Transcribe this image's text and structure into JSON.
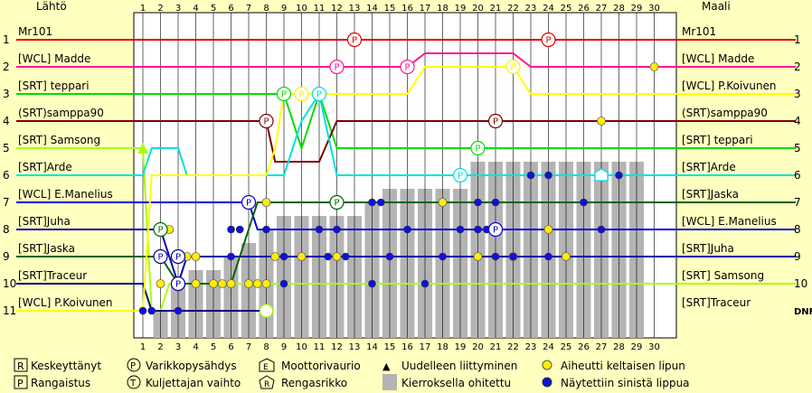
{
  "header": {
    "start_title": "Lähtö",
    "finish_title": "Maali"
  },
  "chart_data": {
    "type": "line",
    "laps": [
      1,
      2,
      3,
      4,
      5,
      6,
      7,
      8,
      9,
      10,
      11,
      12,
      13,
      14,
      15,
      16,
      17,
      18,
      19,
      20,
      21,
      22,
      23,
      24,
      25,
      26,
      27,
      28,
      29,
      30
    ],
    "positions": [
      1,
      2,
      3,
      4,
      5,
      6,
      7,
      8,
      9,
      10,
      11
    ],
    "start_labels": [
      "Mr101",
      "[WCL] Madde",
      "[SRT] teppari",
      "(SRT)samppa90",
      "[SRT] Samsong",
      "[SRT]Arde",
      "[WCL] E.Manelius",
      "[SRT]Juha",
      "[SRT]Jaska",
      "[SRT]Traceur",
      "[WCL] P.Koivunen"
    ],
    "finish_labels": [
      "Mr101",
      "[WCL] Madde",
      "[WCL] P.Koivunen",
      "(SRT)samppa90",
      "[SRT] teppari",
      "[SRT]Arde",
      "[SRT]Jaska",
      "[WCL] E.Manelius",
      "[SRT]Juha",
      "[SRT] Samsong",
      "[SRT]Traceur"
    ],
    "finish_positions": [
      "1",
      "2",
      "3",
      "4",
      "5",
      "6",
      "7",
      "8",
      "9",
      "10",
      "DNF"
    ],
    "lapped_bands": [
      {
        "lap": 2,
        "top": 11
      },
      {
        "lap": 3,
        "top": 10
      },
      {
        "lap": 4,
        "top": 9.5
      },
      {
        "lap": 5,
        "top": 9.5
      },
      {
        "lap": 6,
        "top": 9
      },
      {
        "lap": 7,
        "top": 8.5
      },
      {
        "lap": 8,
        "top": 8
      },
      {
        "lap": 9,
        "top": 7.5
      },
      {
        "lap": 10,
        "top": 7.5
      },
      {
        "lap": 11,
        "top": 7.5
      },
      {
        "lap": 12,
        "top": 7.5
      },
      {
        "lap": 13,
        "top": 7.5
      },
      {
        "lap": 14,
        "top": 7
      },
      {
        "lap": 15,
        "top": 6.5
      },
      {
        "lap": 16,
        "top": 6.5
      },
      {
        "lap": 17,
        "top": 6.5
      },
      {
        "lap": 18,
        "top": 6.5
      },
      {
        "lap": 19,
        "top": 6.5
      },
      {
        "lap": 20,
        "top": 5.5
      },
      {
        "lap": 21,
        "top": 5.5
      },
      {
        "lap": 22,
        "top": 5.5
      },
      {
        "lap": 23,
        "top": 5.5
      },
      {
        "lap": 24,
        "top": 5.5
      },
      {
        "lap": 25,
        "top": 5.5
      },
      {
        "lap": 26,
        "top": 5.5
      },
      {
        "lap": 27,
        "top": 5.5
      },
      {
        "lap": 28,
        "top": 5.5
      },
      {
        "lap": 29,
        "top": 5.5
      }
    ],
    "series": [
      {
        "name": "Mr101",
        "color": "#e00000",
        "points": [
          [
            0,
            1
          ],
          [
            1,
            1
          ],
          [
            30,
            1
          ]
        ]
      },
      {
        "name": "[WCL] Madde",
        "color": "#ff1493",
        "points": [
          [
            0,
            2
          ],
          [
            1,
            2
          ],
          [
            16,
            2
          ],
          [
            17,
            1.5
          ],
          [
            22,
            1.5
          ],
          [
            23,
            2
          ],
          [
            30,
            2
          ]
        ]
      },
      {
        "name": "[SRT] teppari",
        "color": "#00dd00",
        "points": [
          [
            0,
            3
          ],
          [
            1,
            3
          ],
          [
            8,
            3
          ],
          [
            9,
            3
          ],
          [
            10,
            5
          ],
          [
            11,
            3
          ],
          [
            11.5,
            4
          ],
          [
            12,
            5
          ],
          [
            30,
            5
          ]
        ]
      },
      {
        "name": "(SRT)samppa90",
        "color": "#800000",
        "points": [
          [
            0,
            4
          ],
          [
            1,
            4
          ],
          [
            8,
            4
          ],
          [
            8.5,
            5.5
          ],
          [
            11,
            5.5
          ],
          [
            12,
            4
          ],
          [
            30,
            4
          ]
        ]
      },
      {
        "name": "[SRT] Samsong",
        "color": "#aaff00",
        "points": [
          [
            0,
            5
          ],
          [
            1,
            5
          ],
          [
            1.5,
            11
          ],
          [
            2,
            11
          ],
          [
            2.5,
            10
          ],
          [
            8,
            10
          ],
          [
            9,
            10
          ],
          [
            30,
            10
          ]
        ]
      },
      {
        "name": "[SRT]Arde",
        "color": "#00e0e0",
        "points": [
          [
            0,
            6
          ],
          [
            1,
            6
          ],
          [
            1.5,
            5
          ],
          [
            3,
            5
          ],
          [
            3.5,
            6
          ],
          [
            8,
            6
          ],
          [
            9,
            6
          ],
          [
            10,
            4
          ],
          [
            11,
            3
          ],
          [
            12,
            6
          ],
          [
            30,
            6
          ]
        ]
      },
      {
        "name": "[WCL] E.Manelius",
        "color": "#0000dd",
        "points": [
          [
            0,
            7
          ],
          [
            1,
            7
          ],
          [
            7,
            7
          ],
          [
            7.5,
            8
          ],
          [
            30,
            8
          ]
        ]
      },
      {
        "name": "[SRT]Juha",
        "color": "#0000aa",
        "points": [
          [
            0,
            8
          ],
          [
            1,
            8
          ],
          [
            2,
            8
          ],
          [
            3,
            10
          ],
          [
            3.5,
            9
          ],
          [
            30,
            9
          ]
        ]
      },
      {
        "name": "[SRT]Jaska",
        "color": "#006400",
        "points": [
          [
            0,
            9
          ],
          [
            1,
            9
          ],
          [
            2,
            9
          ],
          [
            3,
            10
          ],
          [
            6,
            10
          ],
          [
            7,
            8
          ],
          [
            7.5,
            7
          ],
          [
            30,
            7
          ]
        ]
      },
      {
        "name": "[SRT]Traceur",
        "color": "#00007a",
        "points": [
          [
            0,
            10
          ],
          [
            1,
            10
          ],
          [
            1.5,
            11
          ],
          [
            8,
            11
          ],
          [
            30,
            11
          ]
        ],
        "dotted_from": 9
      },
      {
        "name": "[WCL] P.Koivunen",
        "color": "#ffff00",
        "points": [
          [
            0,
            11
          ],
          [
            1,
            11
          ],
          [
            1.5,
            6
          ],
          [
            8,
            6
          ],
          [
            8.5,
            5
          ],
          [
            9,
            3
          ],
          [
            12,
            3
          ],
          [
            16,
            3
          ],
          [
            17,
            2
          ],
          [
            22,
            2
          ],
          [
            23,
            3
          ],
          [
            30,
            3
          ]
        ]
      }
    ],
    "pit_stops": [
      [
        13,
        1,
        "#e00000"
      ],
      [
        24,
        1,
        "#e00000"
      ],
      [
        12,
        2,
        "#ff1493"
      ],
      [
        16,
        2,
        "#ff1493"
      ],
      [
        22,
        2,
        "#ffee00"
      ],
      [
        9,
        3,
        "#00dd00"
      ],
      [
        10,
        3,
        "#ffee00"
      ],
      [
        11,
        3,
        "#00e0e0"
      ],
      [
        8,
        4,
        "#800000"
      ],
      [
        21,
        4,
        "#800000"
      ],
      [
        20,
        5,
        "#00dd00"
      ],
      [
        19,
        6,
        "#00e0e0"
      ],
      [
        7,
        7,
        "#0000dd"
      ],
      [
        12,
        7,
        "#006400"
      ],
      [
        21,
        8,
        "#0000dd"
      ],
      [
        2,
        8,
        "#006400"
      ],
      [
        2,
        9,
        "#0000aa"
      ],
      [
        3,
        9,
        "#0000aa"
      ],
      [
        3,
        10,
        "#0000aa"
      ]
    ],
    "yellow_flags": [
      [
        30,
        2
      ],
      [
        27,
        4
      ],
      [
        8,
        7
      ],
      [
        18,
        7
      ],
      [
        2.5,
        8
      ],
      [
        24,
        8
      ],
      [
        3.5,
        9
      ],
      [
        4,
        9
      ],
      [
        8.5,
        9
      ],
      [
        10,
        9
      ],
      [
        12,
        9
      ],
      [
        20,
        9
      ],
      [
        22,
        9
      ],
      [
        25,
        9
      ],
      [
        2,
        10
      ],
      [
        3,
        10
      ],
      [
        4,
        10
      ],
      [
        5,
        10
      ],
      [
        5.5,
        10
      ],
      [
        6,
        10
      ],
      [
        7,
        10
      ],
      [
        7.5,
        10
      ],
      [
        8,
        10
      ]
    ],
    "blue_flags": [
      [
        23,
        6
      ],
      [
        24,
        6
      ],
      [
        28,
        6
      ],
      [
        14,
        7
      ],
      [
        14.5,
        7
      ],
      [
        20,
        7
      ],
      [
        21,
        7
      ],
      [
        26,
        7
      ],
      [
        6,
        8
      ],
      [
        6.5,
        8
      ],
      [
        8,
        8
      ],
      [
        11,
        8
      ],
      [
        12,
        8
      ],
      [
        16,
        8
      ],
      [
        19,
        8
      ],
      [
        20,
        8
      ],
      [
        20.5,
        8
      ],
      [
        27,
        8
      ],
      [
        3,
        9
      ],
      [
        6,
        9
      ],
      [
        9,
        9
      ],
      [
        11.5,
        9
      ],
      [
        12.5,
        9
      ],
      [
        15,
        9
      ],
      [
        18,
        9
      ],
      [
        21,
        9
      ],
      [
        22,
        9
      ],
      [
        24,
        9
      ],
      [
        9,
        10
      ],
      [
        14,
        10
      ],
      [
        17,
        10
      ],
      [
        1,
        11
      ],
      [
        1.5,
        11
      ],
      [
        3,
        11
      ]
    ],
    "motor_fails": [
      [
        27,
        6,
        "#00e0e0"
      ]
    ],
    "rejoin_markers": [
      [
        1,
        5,
        "#aaff00"
      ]
    ],
    "change_markers": [
      [
        8,
        11,
        "#aaff00"
      ]
    ]
  },
  "legend": [
    {
      "symbol": "R",
      "label": "Keskeyttänyt"
    },
    {
      "symbol": "P",
      "label": "Varikkopysähdys"
    },
    {
      "symbol": "E",
      "label": "Moottorivaurio"
    },
    {
      "symbol": "▲",
      "label": "Uudelleen liittyminen"
    },
    {
      "symbol": "●",
      "label": "Aiheutti keltaisen lipun"
    },
    {
      "symbol": "P",
      "label": "Rangaistus"
    },
    {
      "symbol": "T",
      "label": "Kuljettajan vaihto"
    },
    {
      "symbol": "R",
      "label": "Rengasrikko"
    },
    {
      "symbol": "■",
      "label": "Kierroksella ohitettu"
    },
    {
      "symbol": "●",
      "label": "Näytettiin sinistä lippua"
    }
  ]
}
